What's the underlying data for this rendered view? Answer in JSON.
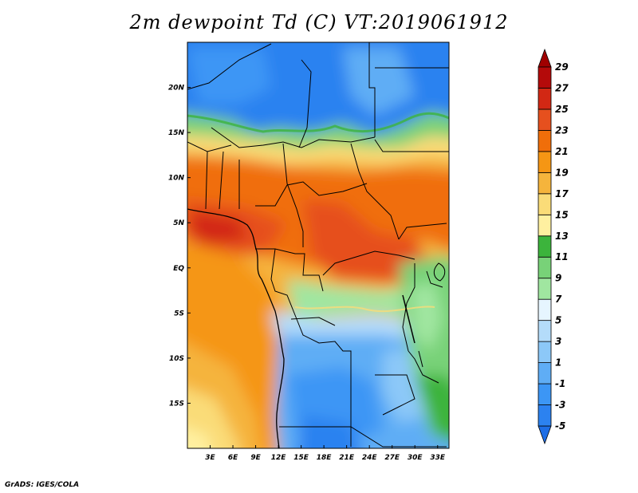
{
  "title": "2m dewpoint Td (C) VT:2019061912",
  "credit": "GrADS: IGES/COLA",
  "map": {
    "lon_range": [
      0,
      34.5
    ],
    "lat_range": [
      -20,
      25
    ],
    "lat_ticks": [
      {
        "value": 20,
        "label": "20N"
      },
      {
        "value": 15,
        "label": "15N"
      },
      {
        "value": 10,
        "label": "10N"
      },
      {
        "value": 5,
        "label": "5N"
      },
      {
        "value": 0,
        "label": "EQ"
      },
      {
        "value": -5,
        "label": "5S"
      },
      {
        "value": -10,
        "label": "10S"
      },
      {
        "value": -15,
        "label": "15S"
      }
    ],
    "lon_ticks": [
      {
        "value": 3,
        "label": "3E"
      },
      {
        "value": 6,
        "label": "6E"
      },
      {
        "value": 9,
        "label": "9E"
      },
      {
        "value": 12,
        "label": "12E"
      },
      {
        "value": 15,
        "label": "15E"
      },
      {
        "value": 18,
        "label": "18E"
      },
      {
        "value": 21,
        "label": "21E"
      },
      {
        "value": 24,
        "label": "24E"
      },
      {
        "value": 27,
        "label": "27E"
      },
      {
        "value": 30,
        "label": "30E"
      },
      {
        "value": 33,
        "label": "33E"
      }
    ]
  },
  "colorbar": {
    "levels": [
      "-5",
      "-3",
      "-1",
      "1",
      "3",
      "5",
      "7",
      "9",
      "11",
      "13",
      "15",
      "17",
      "19",
      "21",
      "23",
      "25",
      "27",
      "29"
    ],
    "colors": [
      "#1e6ee6",
      "#2c82f0",
      "#3c96f5",
      "#5fadf5",
      "#8cc8f8",
      "#b4dcfa",
      "#e6f5ff",
      "#a0e6a0",
      "#78d278",
      "#3cb43c",
      "#fff0a0",
      "#fadc78",
      "#f5b43c",
      "#f59614",
      "#f06e0a",
      "#e6501e",
      "#d22814",
      "#b40a0a",
      "#a00000"
    ]
  }
}
